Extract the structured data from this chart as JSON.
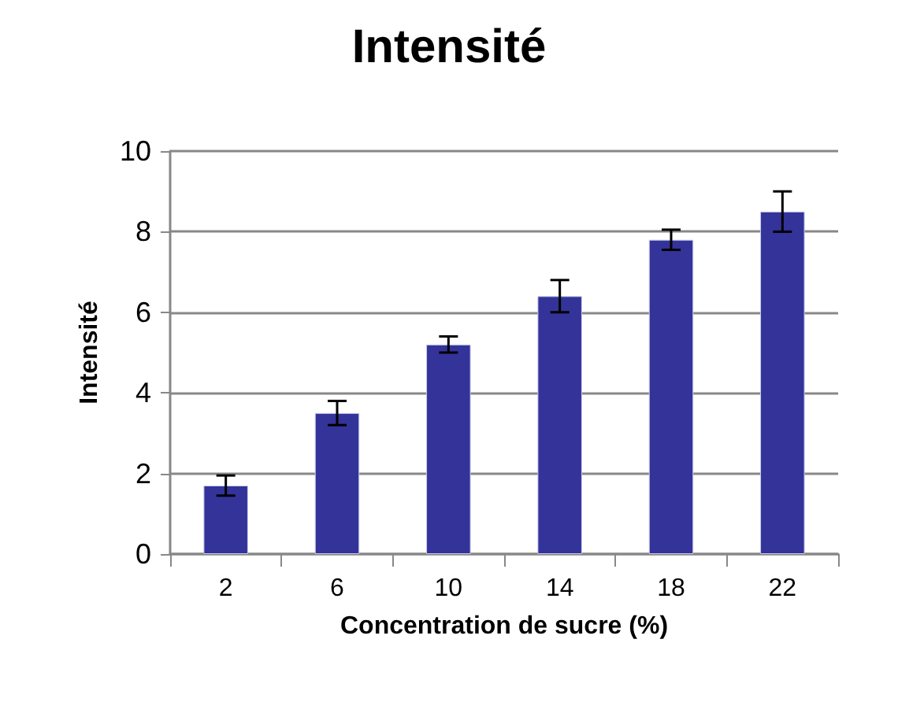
{
  "chart_data": {
    "type": "bar",
    "title": "Intensité",
    "xlabel": "Concentration de sucre (%)",
    "ylabel": "Intensité",
    "categories": [
      "2",
      "6",
      "10",
      "14",
      "18",
      "22"
    ],
    "values": [
      1.7,
      3.5,
      5.2,
      6.4,
      7.8,
      8.5
    ],
    "errors": [
      0.25,
      0.3,
      0.2,
      0.4,
      0.25,
      0.5
    ],
    "color": "#333399",
    "ylim": [
      0,
      10
    ],
    "yticks": [
      0,
      2,
      4,
      6,
      8,
      10
    ],
    "grid": "y"
  }
}
